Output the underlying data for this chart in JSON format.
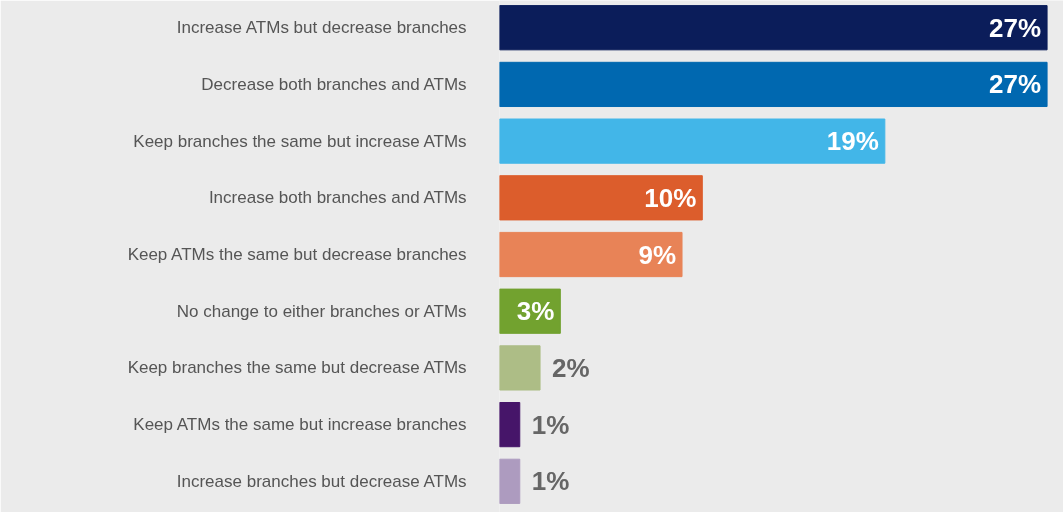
{
  "chart_data": {
    "type": "bar",
    "orientation": "horizontal",
    "categories": [
      "Increase ATMs but decrease branches",
      "Decrease both branches and ATMs",
      "Keep branches the same but increase ATMs",
      "Increase both branches and ATMs",
      "Keep ATMs the same but decrease branches",
      "No change to either branches or ATMs",
      "Keep branches the same but decrease ATMs",
      "Keep ATMs the same but increase branches",
      "Increase branches but decrease ATMs"
    ],
    "values": [
      27,
      27,
      19,
      10,
      9,
      3,
      2,
      1,
      1
    ],
    "value_labels": [
      "27%",
      "27%",
      "19%",
      "10%",
      "9%",
      "3%",
      "2%",
      "1%",
      "1%"
    ],
    "colors": [
      "#0b1d5a",
      "#0068b0",
      "#42b6e8",
      "#dc5d2c",
      "#e88357",
      "#72a22f",
      "#adbd86",
      "#461569",
      "#ad9bbf"
    ]
  }
}
